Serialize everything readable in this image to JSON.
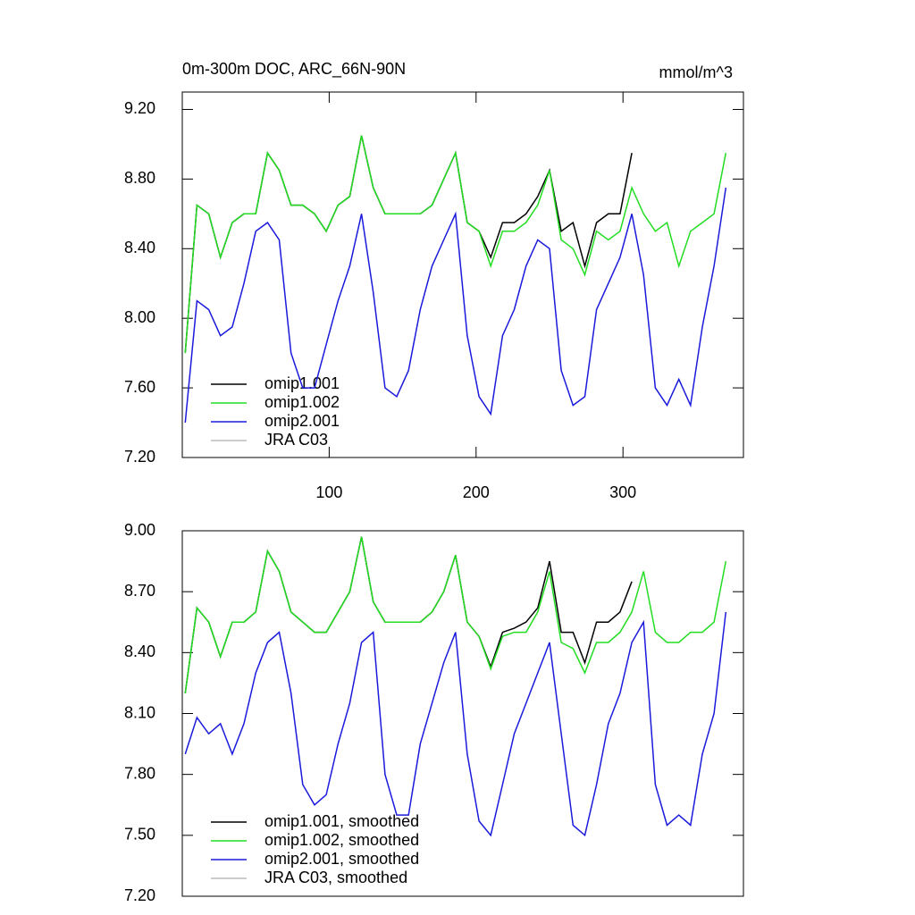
{
  "chart_data": [
    {
      "type": "line",
      "title": "0m-300m DOC, ARC_66N-90N",
      "units": "mmol/m^3",
      "x": [
        2,
        10,
        18,
        26,
        34,
        42,
        50,
        58,
        66,
        74,
        82,
        90,
        98,
        106,
        114,
        122,
        130,
        138,
        146,
        154,
        162,
        170,
        178,
        186,
        194,
        202,
        210,
        218,
        226,
        234,
        242,
        250,
        258,
        266,
        274,
        282,
        290,
        298,
        306,
        314,
        322,
        330,
        338,
        346,
        354,
        362,
        370
      ],
      "xlim": [
        0,
        382
      ],
      "xticks": [
        100,
        200,
        300
      ],
      "ylim": [
        7.2,
        9.3
      ],
      "yticks": [
        {
          "value": 7.2,
          "label": "7.20"
        },
        {
          "value": 7.6,
          "label": "7.60"
        },
        {
          "value": 8.0,
          "label": "8.00"
        },
        {
          "value": 8.4,
          "label": "8.40"
        },
        {
          "value": 8.8,
          "label": "8.80"
        },
        {
          "value": 9.2,
          "label": "9.20"
        }
      ],
      "series": [
        {
          "name": "omip1.001",
          "color": "#000000",
          "values": [
            7.8,
            8.65,
            8.6,
            8.35,
            8.55,
            8.6,
            8.6,
            8.95,
            8.85,
            8.65,
            8.65,
            8.6,
            8.5,
            8.65,
            8.7,
            9.05,
            8.75,
            8.6,
            8.6,
            8.6,
            8.6,
            8.65,
            8.8,
            8.95,
            8.55,
            8.5,
            8.35,
            8.55,
            8.55,
            8.6,
            8.7,
            8.85,
            8.5,
            8.55,
            8.3,
            8.55,
            8.6,
            8.6,
            8.95,
            null,
            null,
            null,
            null,
            null,
            null,
            null,
            null
          ]
        },
        {
          "name": "omip1.002",
          "color": "#22dd22",
          "values": [
            7.8,
            8.65,
            8.6,
            8.35,
            8.55,
            8.6,
            8.6,
            8.95,
            8.85,
            8.65,
            8.65,
            8.6,
            8.5,
            8.65,
            8.7,
            9.05,
            8.75,
            8.6,
            8.6,
            8.6,
            8.6,
            8.65,
            8.8,
            8.95,
            8.55,
            8.5,
            8.3,
            8.5,
            8.5,
            8.55,
            8.65,
            8.85,
            8.45,
            8.4,
            8.25,
            8.5,
            8.45,
            8.5,
            8.75,
            8.6,
            8.5,
            8.55,
            8.3,
            8.5,
            8.55,
            8.6,
            8.95
          ]
        },
        {
          "name": "omip2.001",
          "color": "#1a1adc",
          "values": [
            7.4,
            8.1,
            8.05,
            7.9,
            7.95,
            8.2,
            8.5,
            8.55,
            8.45,
            7.8,
            7.6,
            7.6,
            7.85,
            8.1,
            8.3,
            8.6,
            8.15,
            7.6,
            7.55,
            7.7,
            8.05,
            8.3,
            8.45,
            8.6,
            7.9,
            7.55,
            7.45,
            7.9,
            8.05,
            8.3,
            8.45,
            8.4,
            7.7,
            7.5,
            7.55,
            8.05,
            8.2,
            8.35,
            8.6,
            8.25,
            7.6,
            7.5,
            7.65,
            7.5,
            7.95,
            8.3,
            8.75
          ]
        },
        {
          "name": "JRA C03",
          "color": "#bbbbbb",
          "values": [
            null,
            null,
            null,
            null,
            null,
            null,
            null,
            null,
            null,
            null,
            null,
            null,
            null,
            null,
            null,
            null,
            null,
            null,
            null,
            null,
            null,
            null,
            null,
            null,
            null,
            null,
            null,
            null,
            null,
            null,
            null,
            null,
            null,
            null,
            null,
            null,
            null,
            null,
            null,
            null,
            null,
            null,
            null,
            null,
            null,
            null,
            null
          ]
        }
      ]
    },
    {
      "type": "line",
      "x": [
        2,
        10,
        18,
        26,
        34,
        42,
        50,
        58,
        66,
        74,
        82,
        90,
        98,
        106,
        114,
        122,
        130,
        138,
        146,
        154,
        162,
        170,
        178,
        186,
        194,
        202,
        210,
        218,
        226,
        234,
        242,
        250,
        258,
        266,
        274,
        282,
        290,
        298,
        306,
        314,
        322,
        330,
        338,
        346,
        354,
        362,
        370
      ],
      "xlim": [
        0,
        382
      ],
      "ylim": [
        7.2,
        9.0
      ],
      "yticks": [
        {
          "value": 7.2,
          "label": "7.20"
        },
        {
          "value": 7.5,
          "label": "7.50"
        },
        {
          "value": 7.8,
          "label": "7.80"
        },
        {
          "value": 8.1,
          "label": "8.10"
        },
        {
          "value": 8.4,
          "label": "8.40"
        },
        {
          "value": 8.7,
          "label": "8.70"
        },
        {
          "value": 9.0,
          "label": "9.00"
        }
      ],
      "series": [
        {
          "name": "omip1.001, smoothed",
          "color": "#000000",
          "values": [
            8.2,
            8.62,
            8.55,
            8.38,
            8.55,
            8.55,
            8.6,
            8.9,
            8.8,
            8.6,
            8.55,
            8.5,
            8.5,
            8.6,
            8.7,
            8.97,
            8.65,
            8.55,
            8.55,
            8.55,
            8.55,
            8.6,
            8.7,
            8.88,
            8.55,
            8.48,
            8.33,
            8.5,
            8.52,
            8.55,
            8.62,
            8.85,
            8.5,
            8.5,
            8.35,
            8.55,
            8.55,
            8.6,
            8.75,
            null,
            null,
            null,
            null,
            null,
            null,
            null,
            null
          ]
        },
        {
          "name": "omip1.002, smoothed",
          "color": "#22dd22",
          "values": [
            8.2,
            8.62,
            8.55,
            8.38,
            8.55,
            8.55,
            8.6,
            8.9,
            8.8,
            8.6,
            8.55,
            8.5,
            8.5,
            8.6,
            8.7,
            8.97,
            8.65,
            8.55,
            8.55,
            8.55,
            8.55,
            8.6,
            8.7,
            8.88,
            8.55,
            8.48,
            8.32,
            8.48,
            8.5,
            8.5,
            8.6,
            8.8,
            8.45,
            8.42,
            8.3,
            8.45,
            8.45,
            8.5,
            8.6,
            8.8,
            8.5,
            8.45,
            8.45,
            8.5,
            8.5,
            8.55,
            8.85
          ]
        },
        {
          "name": "omip2.001, smoothed",
          "color": "#1a1adc",
          "values": [
            7.9,
            8.08,
            8.0,
            8.05,
            7.9,
            8.05,
            8.3,
            8.45,
            8.5,
            8.2,
            7.75,
            7.65,
            7.7,
            7.95,
            8.15,
            8.45,
            8.5,
            7.8,
            7.6,
            7.6,
            7.95,
            8.15,
            8.35,
            8.5,
            7.9,
            7.57,
            7.5,
            7.75,
            8.0,
            8.15,
            8.3,
            8.45,
            8.0,
            7.55,
            7.5,
            7.75,
            8.05,
            8.2,
            8.45,
            8.55,
            7.75,
            7.55,
            7.6,
            7.55,
            7.9,
            8.1,
            8.6
          ]
        },
        {
          "name": "JRA C03, smoothed",
          "color": "#bbbbbb",
          "values": [
            null,
            null,
            null,
            null,
            null,
            null,
            null,
            null,
            null,
            null,
            null,
            null,
            null,
            null,
            null,
            null,
            null,
            null,
            null,
            null,
            null,
            null,
            null,
            null,
            null,
            null,
            null,
            null,
            null,
            null,
            null,
            null,
            null,
            null,
            null,
            null,
            null,
            null,
            null,
            null,
            null,
            null,
            null,
            null,
            null,
            null,
            null
          ]
        }
      ]
    }
  ]
}
